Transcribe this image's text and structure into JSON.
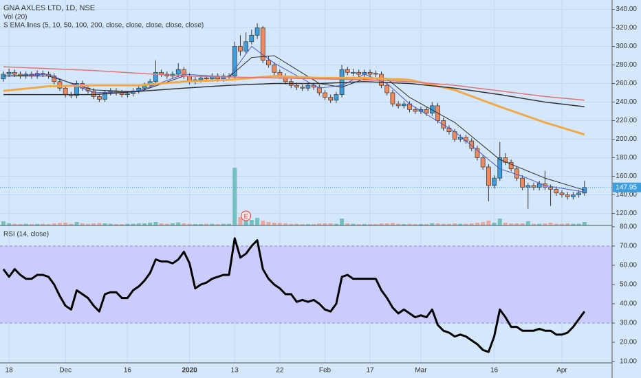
{
  "chart_data": [
    {
      "type": "candlestick",
      "title": "GNA AXLES LTD, 1D, NSE",
      "volume_label": "Vol (20)",
      "ema_label": "S EMA lines (5, 10, 50, 100, 200, close, close, close, close, close)",
      "event_marker": "E",
      "event_index": 43,
      "up_color": "#3a9fdc",
      "down_color": "#ee8a5f",
      "xlim": [
        -0.6,
        107.9
      ],
      "xticks": [
        {
          "value": 1,
          "label": "18"
        },
        {
          "value": 11,
          "label": "Dec"
        },
        {
          "value": 22,
          "label": "16"
        },
        {
          "value": 33,
          "label": "2020"
        },
        {
          "value": 41,
          "label": "13"
        },
        {
          "value": 49,
          "label": "22"
        },
        {
          "value": 57,
          "label": "Feb"
        },
        {
          "value": 65,
          "label": "17"
        },
        {
          "value": 74,
          "label": "Mar"
        },
        {
          "value": 87,
          "label": "16"
        },
        {
          "value": 99,
          "label": "Apr"
        }
      ],
      "ylim": [
        107,
        350
      ],
      "yticks": [
        {
          "value": 120,
          "label": "120.00"
        },
        {
          "value": 140,
          "label": "140.00"
        },
        {
          "value": 160,
          "label": "160.00"
        },
        {
          "value": 180,
          "label": "180.00"
        },
        {
          "value": 200,
          "label": "200.00"
        },
        {
          "value": 220,
          "label": "220.00"
        },
        {
          "value": 240,
          "label": "240.00"
        },
        {
          "value": 260,
          "label": "260.00"
        },
        {
          "value": 280,
          "label": "280.00"
        },
        {
          "value": 300,
          "label": "300.00"
        },
        {
          "value": 320,
          "label": "320.00"
        },
        {
          "value": 340,
          "label": "340.00"
        }
      ],
      "grid": true,
      "last_price": 147.95,
      "open": [
        265,
        270,
        272,
        270,
        268,
        270,
        268,
        271,
        270,
        268,
        262,
        255,
        248,
        247,
        260,
        255,
        252,
        246,
        243,
        250,
        252,
        250,
        248,
        249,
        252,
        255,
        258,
        262,
        272,
        270,
        268,
        270,
        275,
        268,
        262,
        264,
        266,
        265,
        268,
        265,
        267,
        268,
        300,
        295,
        305,
        312,
        320,
        285,
        280,
        272,
        268,
        262,
        258,
        256,
        255,
        258,
        256,
        250,
        245,
        242,
        248,
        275,
        271,
        272,
        270,
        272,
        271,
        270,
        258,
        250,
        238,
        236,
        238,
        232,
        230,
        232,
        228,
        236,
        220,
        212,
        208,
        200,
        202,
        198,
        190,
        180,
        170,
        150,
        158,
        180,
        175,
        168,
        158,
        148,
        150,
        148,
        152,
        148,
        146,
        142,
        140,
        138,
        140,
        142
      ],
      "high": [
        273,
        276,
        275,
        273,
        273,
        273,
        274,
        274,
        273,
        271,
        265,
        258,
        251,
        263,
        263,
        258,
        255,
        249,
        253,
        255,
        255,
        253,
        252,
        255,
        258,
        261,
        265,
        285,
        275,
        273,
        273,
        282,
        278,
        271,
        267,
        269,
        269,
        271,
        271,
        271,
        271,
        305,
        312,
        315,
        318,
        325,
        322,
        290,
        283,
        275,
        271,
        265,
        261,
        259,
        261,
        261,
        259,
        253,
        248,
        251,
        280,
        278,
        276,
        275,
        275,
        275,
        274,
        273,
        261,
        253,
        241,
        241,
        241,
        235,
        235,
        235,
        240,
        239,
        223,
        215,
        211,
        205,
        205,
        201,
        193,
        183,
        173,
        161,
        197,
        185,
        178,
        171,
        161,
        153,
        153,
        155,
        166,
        151,
        149,
        145,
        143,
        143,
        145,
        155
      ],
      "low": [
        262,
        267,
        267,
        265,
        265,
        265,
        265,
        267,
        265,
        259,
        252,
        245,
        244,
        244,
        252,
        249,
        243,
        240,
        240,
        247,
        247,
        245,
        245,
        246,
        249,
        252,
        255,
        259,
        267,
        265,
        265,
        267,
        265,
        259,
        259,
        261,
        262,
        262,
        262,
        262,
        265,
        265,
        290,
        292,
        302,
        308,
        282,
        277,
        269,
        265,
        259,
        255,
        253,
        252,
        252,
        253,
        247,
        242,
        239,
        239,
        245,
        269,
        268,
        267,
        267,
        267,
        267,
        255,
        247,
        235,
        233,
        233,
        229,
        227,
        227,
        225,
        225,
        217,
        209,
        205,
        197,
        197,
        195,
        187,
        177,
        167,
        133,
        147,
        155,
        172,
        165,
        155,
        145,
        125,
        145,
        145,
        145,
        128,
        139,
        137,
        135,
        135,
        137,
        139
      ],
      "close": [
        270,
        272,
        270,
        268,
        270,
        268,
        271,
        270,
        268,
        262,
        255,
        248,
        247,
        260,
        255,
        252,
        246,
        243,
        250,
        252,
        250,
        248,
        249,
        252,
        255,
        258,
        262,
        272,
        270,
        268,
        270,
        275,
        268,
        262,
        264,
        266,
        265,
        268,
        265,
        268,
        268,
        300,
        295,
        305,
        312,
        320,
        285,
        280,
        272,
        268,
        262,
        258,
        256,
        255,
        258,
        256,
        250,
        245,
        242,
        248,
        275,
        272,
        272,
        270,
        272,
        270,
        270,
        258,
        250,
        238,
        236,
        238,
        232,
        230,
        232,
        228,
        236,
        220,
        212,
        208,
        200,
        202,
        198,
        190,
        180,
        170,
        150,
        158,
        180,
        175,
        168,
        158,
        148,
        150,
        148,
        152,
        148,
        146,
        142,
        140,
        138,
        140,
        142,
        148
      ],
      "volume": [
        30,
        15,
        12,
        10,
        12,
        10,
        10,
        12,
        10,
        15,
        18,
        20,
        12,
        25,
        15,
        12,
        15,
        18,
        15,
        12,
        10,
        10,
        12,
        12,
        15,
        15,
        20,
        25,
        15,
        12,
        15,
        22,
        15,
        12,
        10,
        10,
        12,
        12,
        10,
        12,
        12,
        420,
        60,
        45,
        40,
        55,
        35,
        25,
        20,
        18,
        15,
        12,
        12,
        10,
        10,
        10,
        15,
        15,
        15,
        12,
        50,
        15,
        12,
        10,
        10,
        10,
        10,
        15,
        15,
        18,
        12,
        10,
        12,
        10,
        10,
        10,
        15,
        15,
        12,
        12,
        15,
        12,
        12,
        15,
        20,
        25,
        35,
        20,
        50,
        20,
        15,
        15,
        15,
        30,
        12,
        12,
        15,
        20,
        12,
        12,
        15,
        12,
        12,
        25
      ],
      "series": [
        {
          "color": "#5059c9",
          "width": 1,
          "x": [
            0,
            8,
            16,
            24,
            32,
            40,
            44,
            48,
            56,
            60,
            64,
            68,
            72,
            80,
            88,
            92,
            96,
            103
          ],
          "values": [
            268,
            270,
            250,
            252,
            270,
            267,
            300,
            282,
            255,
            258,
            270,
            260,
            238,
            208,
            168,
            160,
            150,
            143
          ]
        },
        {
          "color": "#2b2b2b",
          "width": 1,
          "x": [
            0,
            8,
            16,
            24,
            32,
            40,
            44,
            48,
            56,
            60,
            64,
            68,
            72,
            80,
            88,
            92,
            96,
            103
          ],
          "values": [
            268,
            268,
            253,
            251,
            268,
            267,
            288,
            290,
            260,
            256,
            265,
            265,
            245,
            218,
            178,
            168,
            158,
            145
          ]
        },
        {
          "color": "#f0a94a",
          "width": 3,
          "x": [
            0,
            8,
            16,
            24,
            32,
            40,
            48,
            56,
            64,
            72,
            80,
            88,
            96,
            103
          ],
          "values": [
            252,
            257,
            258,
            258,
            262,
            264,
            268,
            266,
            266,
            264,
            253,
            235,
            218,
            205
          ]
        },
        {
          "color": "#333333",
          "width": 1.5,
          "x": [
            0,
            16,
            32,
            40,
            48,
            56,
            64,
            72,
            80,
            88,
            96,
            103
          ],
          "values": [
            248,
            248,
            255,
            258,
            260,
            260,
            262,
            260,
            255,
            248,
            240,
            235
          ]
        },
        {
          "color": "#e0737a",
          "width": 1.5,
          "x": [
            0,
            16,
            32,
            48,
            64,
            72,
            80,
            88,
            96,
            103
          ],
          "values": [
            278,
            274,
            268,
            266,
            264,
            262,
            258,
            252,
            246,
            242
          ]
        }
      ]
    },
    {
      "type": "line",
      "title": "RSI (14, close)",
      "color": "#000000",
      "band": [
        30,
        70
      ],
      "ylim": [
        9.3,
        80.7
      ],
      "yticks": [
        {
          "value": 10,
          "label": "10.00"
        },
        {
          "value": 20,
          "label": "20.00"
        },
        {
          "value": 30,
          "label": "30.00"
        },
        {
          "value": 40,
          "label": "40.00"
        },
        {
          "value": 50,
          "label": "50.00"
        },
        {
          "value": 60,
          "label": "60.00"
        },
        {
          "value": 70,
          "label": "70.00"
        },
        {
          "value": 80,
          "label": "80.00"
        }
      ],
      "values": [
        58,
        54,
        58,
        55,
        53,
        53,
        55,
        55,
        54,
        50,
        44,
        39,
        37,
        47,
        45,
        43,
        39,
        36,
        45,
        46,
        46,
        43,
        43,
        47,
        49,
        52,
        56,
        63,
        62,
        62,
        61,
        63,
        67,
        61,
        48,
        50,
        51,
        53,
        54,
        55,
        55,
        74,
        64,
        66,
        70,
        73,
        58,
        53,
        50,
        48,
        45,
        45,
        41,
        42,
        41,
        42,
        40,
        37,
        36,
        40,
        54,
        55,
        53,
        53,
        53,
        53,
        53,
        47,
        43,
        38,
        35,
        37,
        35,
        33,
        34,
        33,
        37,
        29,
        26,
        25,
        23,
        24,
        23,
        21,
        19,
        16,
        15,
        23,
        37,
        33,
        28,
        28,
        26,
        26,
        26,
        27,
        26,
        26,
        24,
        24,
        25,
        28,
        32,
        36
      ]
    }
  ]
}
